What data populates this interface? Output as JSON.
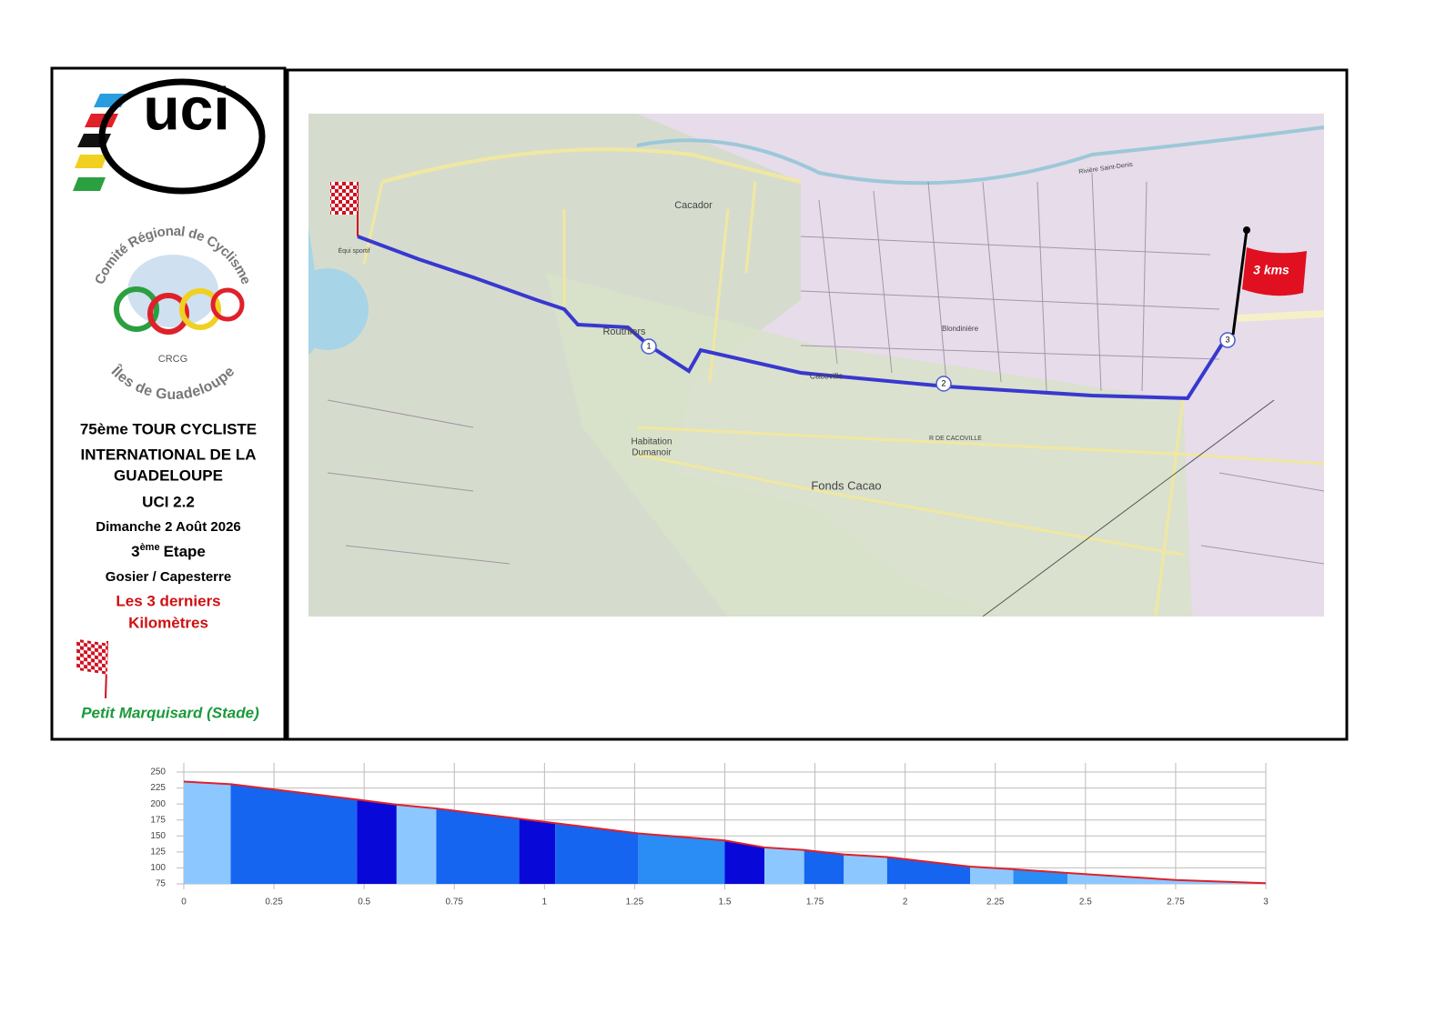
{
  "sidebar": {
    "uci_logo": "uci",
    "crc_top": "Comité Régional de Cyclisme",
    "crc_bottom": "Îles de Guadeloupe",
    "crc_letters": "CRCG",
    "event_line1": "75ème TOUR CYCLISTE",
    "event_line2": "INTERNATIONAL DE LA",
    "event_line3": "GUADELOUPE",
    "category": "UCI 2.2",
    "date": "Dimanche 2 Août 2026",
    "stage": {
      "number": "3",
      "suffix": "ème",
      "label": "Etape"
    },
    "route": "Gosier / Capesterre",
    "section_line1": "Les 3 derniers",
    "section_line2": "Kilomètres",
    "finish": "Petit Marquisard (Stade)"
  },
  "map": {
    "labels": [
      "Cacador",
      "Routhiers",
      "Cacoville",
      "Blondinière",
      "Habitation",
      "Dumanoir",
      "Fonds Cacao",
      "R DE CACOVILLE",
      "Équi sportif",
      "Rivière Saint-Denis"
    ],
    "markers": [
      "1",
      "2",
      "3"
    ],
    "flag": "3 kms"
  },
  "chart_data": {
    "type": "area",
    "x": [
      0,
      0.13,
      0.48,
      0.59,
      0.7,
      0.93,
      1.03,
      1.26,
      1.5,
      1.61,
      1.72,
      1.83,
      1.95,
      2.18,
      2.3,
      2.45,
      2.75,
      3
    ],
    "y": [
      235,
      231,
      207,
      199,
      193,
      177,
      170,
      154,
      143,
      132,
      128,
      121,
      117,
      102,
      98,
      92,
      81,
      76
    ],
    "segment_colors": [
      "#8cc8ff",
      "#1565f0",
      "#0808d8",
      "#8cc8ff",
      "#1565f0",
      "#0808d8",
      "#1565f0",
      "#2a8cf5",
      "#0808d8",
      "#8cc8ff",
      "#1565f0",
      "#8cc8ff",
      "#1565f0",
      "#8cc8ff",
      "#2a8cf5",
      "#8cc8ff",
      "#8cc8ff"
    ],
    "line_color": "#e0202a",
    "xlim": [
      0,
      3
    ],
    "ylim": [
      75,
      250
    ],
    "xticks": [
      0,
      0.25,
      0.5,
      0.75,
      1,
      1.25,
      1.5,
      1.75,
      2,
      2.25,
      2.5,
      2.75,
      3
    ],
    "yticks": [
      75,
      100,
      125,
      150,
      175,
      200,
      225,
      250
    ],
    "grid": true
  }
}
